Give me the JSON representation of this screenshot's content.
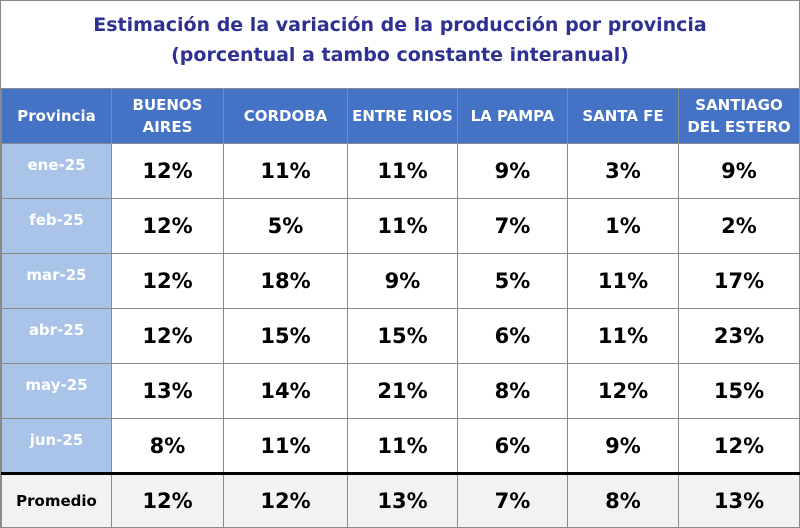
{
  "title_line1": "Estimación de la variación de la producción por provincia",
  "title_line2": "(porcentual a tambo constante interanual)",
  "chart_data": {
    "type": "table",
    "title": "Estimación de la variación de la producción por provincia (porcentual a tambo constante interanual)",
    "header": [
      "Provincia",
      "BUENOS AIRES",
      "CORDOBA",
      "ENTRE RIOS",
      "LA PAMPA",
      "SANTA FE",
      "SANTIAGO DEL ESTERO"
    ],
    "rows": [
      {
        "label": "ene-25",
        "values": [
          "12%",
          "11%",
          "11%",
          "9%",
          "3%",
          "9%"
        ]
      },
      {
        "label": "feb-25",
        "values": [
          "12%",
          "5%",
          "11%",
          "7%",
          "1%",
          "2%"
        ]
      },
      {
        "label": "mar-25",
        "values": [
          "12%",
          "18%",
          "9%",
          "5%",
          "11%",
          "17%"
        ]
      },
      {
        "label": "abr-25",
        "values": [
          "12%",
          "15%",
          "15%",
          "6%",
          "11%",
          "23%"
        ]
      },
      {
        "label": "may-25",
        "values": [
          "13%",
          "14%",
          "21%",
          "8%",
          "12%",
          "15%"
        ]
      },
      {
        "label": "jun-25",
        "values": [
          "8%",
          "11%",
          "11%",
          "6%",
          "9%",
          "12%"
        ]
      }
    ],
    "footer": {
      "label": "Promedio",
      "values": [
        "12%",
        "12%",
        "13%",
        "7%",
        "8%",
        "13%"
      ]
    }
  },
  "colors": {
    "title": "#2e3192",
    "header_bg": "#4472c4",
    "row_label_bg": "#a9c4e8",
    "footer_bg": "#f2f2f2"
  }
}
